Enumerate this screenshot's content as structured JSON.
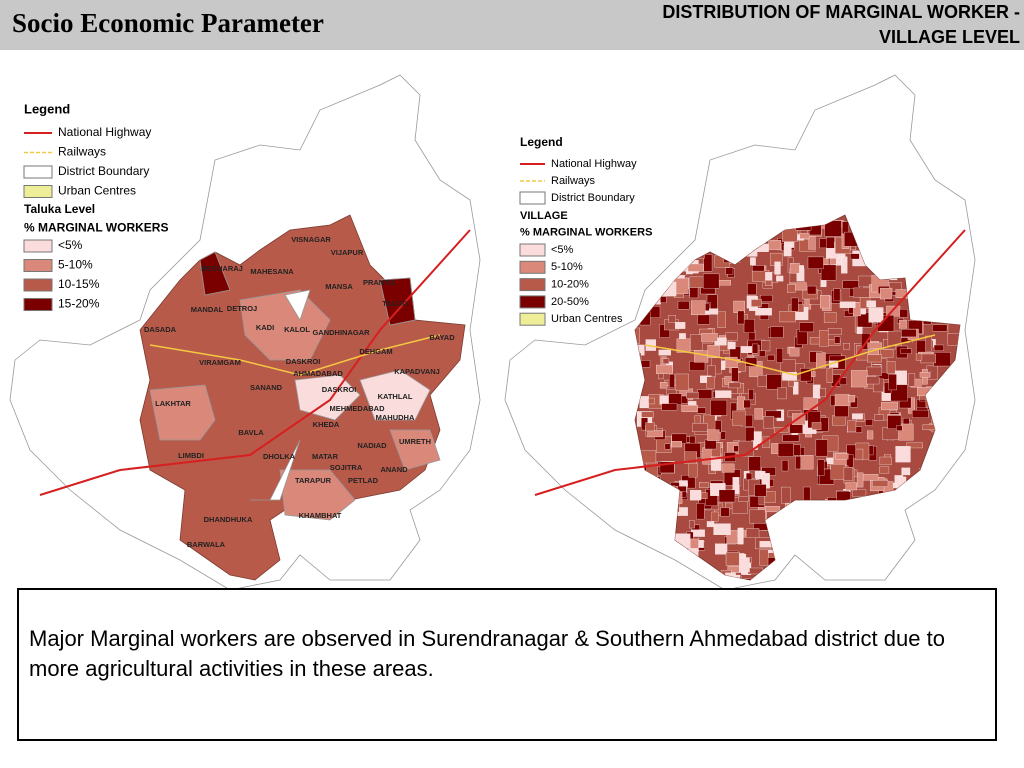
{
  "header": {
    "title": "Socio Economic Parameter",
    "subtitle": [
      "DISTRIBUTION OF MARGINAL WORKER -",
      "VILLAGE LEVEL"
    ]
  },
  "left_map": {
    "legend": {
      "title": "Legend",
      "items": [
        "National Highway",
        "Railways",
        "District Boundary",
        "Urban Centres"
      ],
      "section": "Taluka Level",
      "subtitle": "% MARGINAL WORKERS",
      "classes": [
        "<5%",
        "5-10%",
        "10-15%",
        "15-20%"
      ]
    },
    "labels": [
      "VISNAGAR",
      "VIJAPUR",
      "BECHARAJ",
      "MAHESANA",
      "MANSA",
      "PRANTIJ",
      "TALOD",
      "MANDAL",
      "DETROJ",
      "KADI",
      "KALOL",
      "GANDHINAGAR",
      "BAYAD",
      "DASADA",
      "VIRAMGAM",
      "DASKROI",
      "AHMADABAD",
      "DEHGAM",
      "KAPADVANJ",
      "SANAND",
      "DASKROI",
      "KATHLAL",
      "LAKHTAR",
      "MEHMEDABAD",
      "MAHUDHA",
      "KHEDA",
      "BAVLA",
      "NADIAD",
      "UMRETH",
      "LIMBDI",
      "DHOLKA",
      "MATAR",
      "SOJITRA",
      "ANAND",
      "TARAPUR",
      "PETLAD",
      "KHAMBHAT",
      "DHANDHUKA",
      "BARWALA"
    ]
  },
  "right_map": {
    "legend": {
      "title": "Legend",
      "items": [
        "National Highway",
        "Railways",
        "District Boundary"
      ],
      "section": "VILLAGE",
      "subtitle": "% MARGINAL WORKERS",
      "classes": [
        "<5%",
        "5-10%",
        "10-20%",
        "20-50%",
        "Urban Centres"
      ]
    }
  },
  "note": "Major Marginal workers are observed in Surendranagar & Southern Ahmedabad district due to more agricultural activities in these areas."
}
